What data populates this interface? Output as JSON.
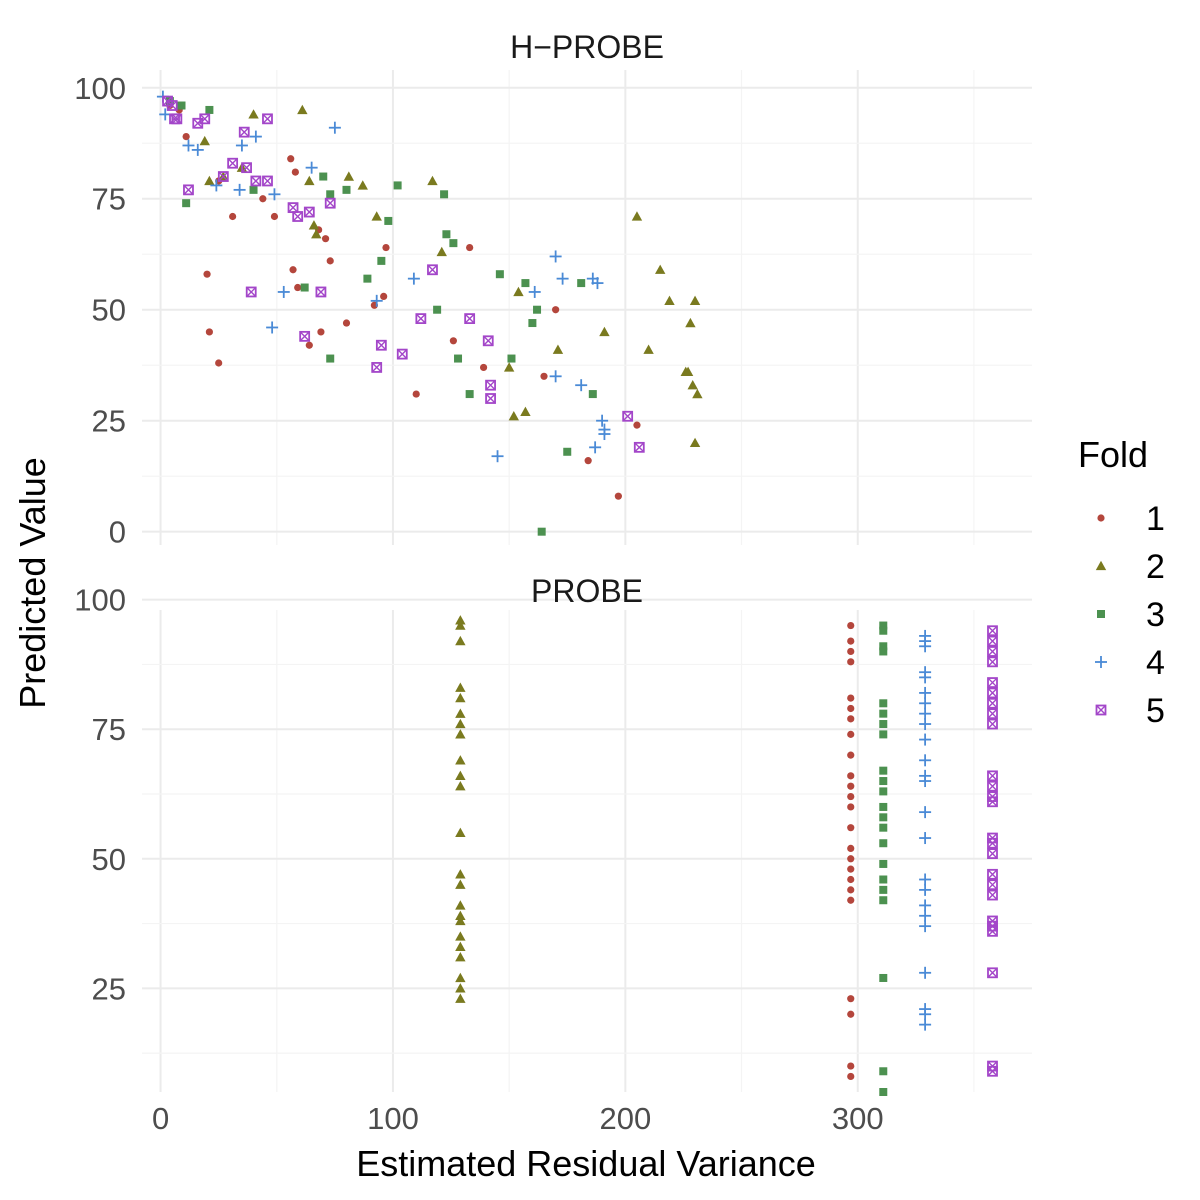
{
  "chart_data": {
    "type": "scatter",
    "xlabel": "Estimated Residual Variance",
    "ylabel": "Predicted Value",
    "xlim": [
      -8,
      375
    ],
    "x_ticks": [
      0,
      100,
      200,
      300
    ],
    "grid": true,
    "legend": {
      "title": "Fold",
      "placement": "right",
      "entries": [
        "1",
        "2",
        "3",
        "4",
        "5"
      ]
    },
    "colors": {
      "1": "#b4463c",
      "2": "#7a7a1f",
      "3": "#4c9150",
      "4": "#4a8ad6",
      "5": "#a346c9"
    },
    "markers": {
      "1": "circle",
      "2": "triangle",
      "3": "square",
      "4": "plus",
      "5": "boxed-x"
    },
    "panels": [
      {
        "title": "H−PROBE",
        "ylim": [
          -3,
          104
        ],
        "y_ticks": [
          0,
          25,
          50,
          75,
          100
        ],
        "points": {
          "1": [
            [
              4,
              96
            ],
            [
              8,
              95
            ],
            [
              11,
              89
            ],
            [
              25,
              79
            ],
            [
              31,
              71
            ],
            [
              44,
              75
            ],
            [
              49,
              71
            ],
            [
              56,
              84
            ],
            [
              58,
              81
            ],
            [
              68,
              68
            ],
            [
              71,
              66
            ],
            [
              73,
              61
            ],
            [
              97,
              64
            ],
            [
              133,
              64
            ],
            [
              20,
              58
            ],
            [
              57,
              59
            ],
            [
              59,
              55
            ],
            [
              64,
              42
            ],
            [
              69,
              45
            ],
            [
              80,
              47
            ],
            [
              92,
              51
            ],
            [
              96,
              53
            ],
            [
              21,
              45
            ],
            [
              25,
              38
            ],
            [
              110,
              31
            ],
            [
              126,
              43
            ],
            [
              139,
              37
            ],
            [
              165,
              35
            ],
            [
              170,
              50
            ],
            [
              184,
              16
            ],
            [
              197,
              8
            ],
            [
              205,
              24
            ]
          ],
          "2": [
            [
              40,
              94
            ],
            [
              61,
              95
            ],
            [
              19,
              88
            ],
            [
              21,
              79
            ],
            [
              27,
              80
            ],
            [
              35,
              82
            ],
            [
              64,
              79
            ],
            [
              66,
              69
            ],
            [
              67,
              67
            ],
            [
              81,
              80
            ],
            [
              87,
              78
            ],
            [
              93,
              71
            ],
            [
              117,
              79
            ],
            [
              121,
              63
            ],
            [
              154,
              54
            ],
            [
              171,
              41
            ],
            [
              150,
              37
            ],
            [
              152,
              26
            ],
            [
              157,
              27
            ],
            [
              191,
              45
            ],
            [
              205,
              71
            ],
            [
              215,
              59
            ],
            [
              219,
              52
            ],
            [
              210,
              41
            ],
            [
              226,
              36
            ],
            [
              227,
              36
            ],
            [
              228,
              47
            ],
            [
              229,
              33
            ],
            [
              230,
              52
            ],
            [
              231,
              31
            ],
            [
              230,
              20
            ]
          ],
          "3": [
            [
              4,
              97
            ],
            [
              9,
              96
            ],
            [
              11,
              74
            ],
            [
              21,
              95
            ],
            [
              40,
              77
            ],
            [
              62,
              55
            ],
            [
              70,
              80
            ],
            [
              73,
              76
            ],
            [
              73,
              39
            ],
            [
              80,
              77
            ],
            [
              89,
              57
            ],
            [
              95,
              61
            ],
            [
              98,
              70
            ],
            [
              102,
              78
            ],
            [
              119,
              50
            ],
            [
              122,
              76
            ],
            [
              123,
              67
            ],
            [
              126,
              65
            ],
            [
              128,
              39
            ],
            [
              133,
              31
            ],
            [
              146,
              58
            ],
            [
              151,
              39
            ],
            [
              157,
              56
            ],
            [
              160,
              47
            ],
            [
              162,
              50
            ],
            [
              164,
              0
            ],
            [
              175,
              18
            ],
            [
              181,
              56
            ],
            [
              186,
              31
            ]
          ],
          "4": [
            [
              1,
              98
            ],
            [
              2,
              94
            ],
            [
              12,
              87
            ],
            [
              16,
              86
            ],
            [
              24,
              78
            ],
            [
              34,
              77
            ],
            [
              35,
              87
            ],
            [
              41,
              89
            ],
            [
              49,
              76
            ],
            [
              53,
              54
            ],
            [
              48,
              46
            ],
            [
              65,
              82
            ],
            [
              75,
              91
            ],
            [
              93,
              52
            ],
            [
              109,
              57
            ],
            [
              145,
              17
            ],
            [
              161,
              54
            ],
            [
              170,
              62
            ],
            [
              173,
              57
            ],
            [
              170,
              35
            ],
            [
              181,
              33
            ],
            [
              186,
              57
            ],
            [
              187,
              19
            ],
            [
              188,
              56
            ],
            [
              190,
              25
            ],
            [
              191,
              22
            ],
            [
              191,
              23
            ]
          ],
          "5": [
            [
              3,
              97
            ],
            [
              5,
              96
            ],
            [
              6,
              93
            ],
            [
              7,
              93
            ],
            [
              16,
              92
            ],
            [
              19,
              93
            ],
            [
              12,
              77
            ],
            [
              27,
              80
            ],
            [
              31,
              83
            ],
            [
              36,
              90
            ],
            [
              37,
              82
            ],
            [
              41,
              79
            ],
            [
              46,
              79
            ],
            [
              46,
              93
            ],
            [
              57,
              73
            ],
            [
              59,
              71
            ],
            [
              62,
              44
            ],
            [
              64,
              72
            ],
            [
              69,
              54
            ],
            [
              73,
              74
            ],
            [
              39,
              54
            ],
            [
              93,
              37
            ],
            [
              95,
              42
            ],
            [
              104,
              40
            ],
            [
              112,
              48
            ],
            [
              117,
              59
            ],
            [
              133,
              48
            ],
            [
              141,
              43
            ],
            [
              142,
              30
            ],
            [
              142,
              33
            ],
            [
              201,
              26
            ],
            [
              206,
              19
            ]
          ]
        }
      },
      {
        "title": "PROBE",
        "ylim": [
          5,
          98
        ],
        "y_ticks": [
          25,
          50,
          75,
          100
        ],
        "points": {
          "1": [
            [
              297,
              95
            ],
            [
              297,
              92
            ],
            [
              297,
              90
            ],
            [
              297,
              88
            ],
            [
              297,
              81
            ],
            [
              297,
              79
            ],
            [
              297,
              77
            ],
            [
              297,
              74
            ],
            [
              297,
              70
            ],
            [
              297,
              66
            ],
            [
              297,
              64
            ],
            [
              297,
              62
            ],
            [
              297,
              60
            ],
            [
              297,
              56
            ],
            [
              297,
              52
            ],
            [
              297,
              50
            ],
            [
              297,
              48
            ],
            [
              297,
              46
            ],
            [
              297,
              44
            ],
            [
              297,
              42
            ],
            [
              297,
              23
            ],
            [
              297,
              20
            ],
            [
              297,
              10
            ],
            [
              297,
              8
            ]
          ],
          "2": [
            [
              129,
              96
            ],
            [
              129,
              95
            ],
            [
              129,
              92
            ],
            [
              129,
              83
            ],
            [
              129,
              81
            ],
            [
              129,
              78
            ],
            [
              129,
              76
            ],
            [
              129,
              74
            ],
            [
              129,
              69
            ],
            [
              129,
              66
            ],
            [
              129,
              64
            ],
            [
              129,
              55
            ],
            [
              129,
              47
            ],
            [
              129,
              45
            ],
            [
              129,
              41
            ],
            [
              129,
              39
            ],
            [
              129,
              38
            ],
            [
              129,
              35
            ],
            [
              129,
              33
            ],
            [
              129,
              31
            ],
            [
              129,
              27
            ],
            [
              129,
              25
            ],
            [
              129,
              23
            ]
          ],
          "3": [
            [
              311,
              95
            ],
            [
              311,
              94
            ],
            [
              311,
              91
            ],
            [
              311,
              90
            ],
            [
              311,
              80
            ],
            [
              311,
              78
            ],
            [
              311,
              76
            ],
            [
              311,
              74
            ],
            [
              311,
              67
            ],
            [
              311,
              65
            ],
            [
              311,
              63
            ],
            [
              311,
              60
            ],
            [
              311,
              58
            ],
            [
              311,
              56
            ],
            [
              311,
              53
            ],
            [
              311,
              49
            ],
            [
              311,
              46
            ],
            [
              311,
              44
            ],
            [
              311,
              42
            ],
            [
              311,
              27
            ],
            [
              311,
              9
            ],
            [
              311,
              5
            ]
          ],
          "4": [
            [
              329,
              93
            ],
            [
              329,
              92
            ],
            [
              329,
              91
            ],
            [
              329,
              86
            ],
            [
              329,
              85
            ],
            [
              329,
              82
            ],
            [
              329,
              80
            ],
            [
              329,
              78
            ],
            [
              329,
              76
            ],
            [
              329,
              73
            ],
            [
              329,
              69
            ],
            [
              329,
              66
            ],
            [
              329,
              65
            ],
            [
              329,
              59
            ],
            [
              329,
              54
            ],
            [
              329,
              46
            ],
            [
              329,
              44
            ],
            [
              329,
              41
            ],
            [
              329,
              39
            ],
            [
              329,
              37
            ],
            [
              329,
              28
            ],
            [
              329,
              21
            ],
            [
              329,
              20
            ],
            [
              329,
              18
            ]
          ],
          "5": [
            [
              358,
              94
            ],
            [
              358,
              92
            ],
            [
              358,
              90
            ],
            [
              358,
              88
            ],
            [
              358,
              84
            ],
            [
              358,
              82
            ],
            [
              358,
              80
            ],
            [
              358,
              78
            ],
            [
              358,
              76
            ],
            [
              358,
              66
            ],
            [
              358,
              64
            ],
            [
              358,
              62
            ],
            [
              358,
              61
            ],
            [
              358,
              54
            ],
            [
              358,
              53
            ],
            [
              358,
              51
            ],
            [
              358,
              47
            ],
            [
              358,
              45
            ],
            [
              358,
              43
            ],
            [
              358,
              38
            ],
            [
              358,
              37
            ],
            [
              358,
              36
            ],
            [
              358,
              28
            ],
            [
              358,
              10
            ],
            [
              358,
              9
            ]
          ]
        }
      }
    ]
  }
}
